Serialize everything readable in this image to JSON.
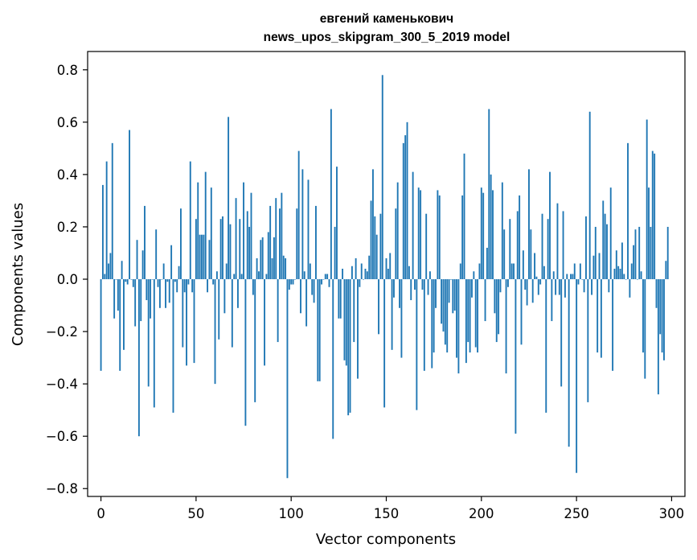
{
  "chart_data": {
    "type": "bar",
    "title": "евгений каменькович",
    "subtitle": "news_upos_skipgram_300_5_2019 model",
    "xlabel": "Vector components",
    "ylabel": "Components values",
    "xlim": [
      -7,
      307
    ],
    "ylim": [
      -0.83,
      0.87
    ],
    "xticks": [
      0,
      50,
      100,
      150,
      200,
      250,
      300
    ],
    "xtick_labels": [
      "0",
      "50",
      "100",
      "150",
      "200",
      "250",
      "300"
    ],
    "yticks": [
      0.8,
      0.6,
      0.4,
      0.2,
      0.0,
      -0.2,
      -0.4,
      -0.6,
      -0.8
    ],
    "ytick_labels": [
      "0.8",
      "0.6",
      "0.4",
      "0.2",
      "0.0",
      "−0.2",
      "−0.4",
      "−0.6",
      "−0.8"
    ],
    "bar_color": "#1f77b4",
    "series": [
      {
        "name": "components",
        "values": [
          -0.35,
          0.36,
          0.02,
          0.45,
          0.06,
          0.1,
          0.52,
          -0.15,
          0.0,
          -0.12,
          -0.35,
          0.07,
          -0.27,
          -0.01,
          -0.02,
          0.57,
          0.0,
          -0.03,
          -0.18,
          0.15,
          -0.6,
          -0.16,
          0.11,
          0.28,
          -0.08,
          -0.41,
          -0.15,
          0.0,
          -0.49,
          0.19,
          -0.03,
          -0.11,
          0.0,
          0.06,
          -0.11,
          -0.01,
          -0.09,
          0.13,
          -0.51,
          -0.01,
          -0.05,
          0.05,
          0.27,
          -0.26,
          -0.05,
          -0.33,
          -0.02,
          0.45,
          -0.05,
          -0.32,
          0.23,
          0.37,
          0.17,
          0.17,
          0.17,
          0.41,
          -0.05,
          0.15,
          0.35,
          -0.02,
          -0.4,
          0.03,
          -0.23,
          0.23,
          0.24,
          -0.13,
          0.06,
          0.62,
          0.21,
          -0.26,
          0.02,
          0.31,
          -0.11,
          0.23,
          0.02,
          0.37,
          -0.56,
          0.26,
          0.2,
          0.33,
          -0.06,
          -0.47,
          0.08,
          0.03,
          0.15,
          0.16,
          -0.33,
          0.02,
          0.18,
          0.28,
          0.08,
          0.16,
          0.31,
          -0.24,
          0.27,
          0.33,
          0.09,
          0.08,
          -0.76,
          -0.04,
          -0.02,
          -0.02,
          0.0,
          0.27,
          0.49,
          -0.13,
          0.42,
          0.03,
          -0.18,
          0.38,
          0.06,
          -0.06,
          -0.09,
          0.28,
          -0.39,
          -0.39,
          -0.02,
          0.0,
          0.02,
          0.02,
          -0.03,
          0.65,
          -0.61,
          0.2,
          0.43,
          -0.15,
          -0.15,
          0.04,
          -0.31,
          -0.33,
          -0.52,
          -0.51,
          0.05,
          -0.24,
          0.08,
          -0.38,
          -0.03,
          0.06,
          0.0,
          0.04,
          0.03,
          0.09,
          0.3,
          0.42,
          0.24,
          0.17,
          -0.21,
          0.25,
          0.78,
          -0.49,
          0.08,
          0.04,
          0.1,
          -0.27,
          -0.07,
          0.27,
          0.37,
          -0.11,
          -0.3,
          0.52,
          0.55,
          0.6,
          0.05,
          -0.08,
          0.41,
          -0.04,
          -0.5,
          0.35,
          0.34,
          -0.04,
          -0.35,
          0.25,
          -0.06,
          0.03,
          -0.34,
          -0.28,
          -0.11,
          0.34,
          0.32,
          -0.17,
          -0.2,
          -0.25,
          -0.28,
          -0.09,
          0.0,
          -0.13,
          -0.12,
          -0.3,
          -0.36,
          0.06,
          0.32,
          0.48,
          -0.32,
          -0.24,
          -0.28,
          -0.07,
          0.03,
          -0.26,
          -0.28,
          0.06,
          0.35,
          0.33,
          -0.16,
          0.12,
          0.65,
          0.4,
          0.34,
          -0.13,
          -0.24,
          -0.21,
          -0.05,
          0.37,
          0.19,
          -0.36,
          -0.03,
          0.23,
          0.06,
          0.06,
          -0.59,
          0.26,
          0.32,
          -0.25,
          0.11,
          -0.04,
          -0.1,
          0.42,
          0.19,
          -0.09,
          0.1,
          0.01,
          -0.06,
          -0.02,
          0.25,
          0.05,
          -0.51,
          0.23,
          0.41,
          -0.16,
          0.03,
          -0.06,
          0.29,
          -0.06,
          -0.41,
          0.26,
          -0.07,
          0.02,
          -0.64,
          0.02,
          0.02,
          0.06,
          -0.74,
          -0.02,
          0.06,
          0.0,
          -0.05,
          0.24,
          -0.47,
          0.64,
          -0.06,
          0.09,
          0.2,
          -0.28,
          0.1,
          -0.3,
          0.3,
          0.25,
          0.21,
          -0.05,
          0.35,
          -0.35,
          0.04,
          0.11,
          0.05,
          0.04,
          0.14,
          0.02,
          0.0,
          0.52,
          -0.07,
          0.06,
          0.13,
          0.19,
          0.0,
          0.2,
          0.03,
          -0.28,
          -0.38,
          0.61,
          0.35,
          0.2,
          0.49,
          0.48,
          -0.11,
          -0.44,
          -0.21,
          -0.28,
          -0.31,
          0.07,
          0.2
        ]
      }
    ]
  }
}
